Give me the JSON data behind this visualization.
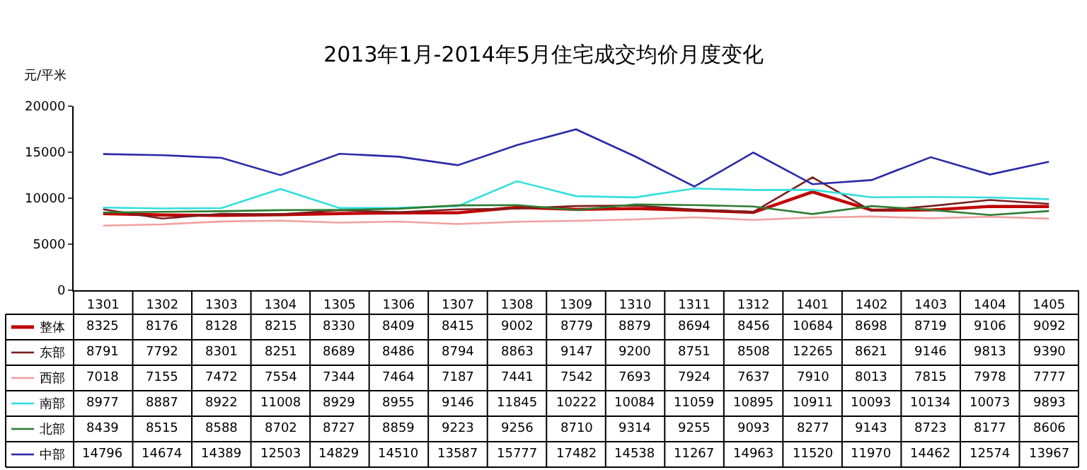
{
  "chart_data": {
    "type": "line",
    "title": "2013年1月-2014年5月住宅成交均价月度变化",
    "ylabel": "元/平米",
    "categories": [
      "1301",
      "1302",
      "1303",
      "1304",
      "1305",
      "1306",
      "1307",
      "1308",
      "1309",
      "1310",
      "1311",
      "1312",
      "1401",
      "1402",
      "1403",
      "1404",
      "1405"
    ],
    "series": [
      {
        "name": "整体",
        "color": "#c00000",
        "values": [
          8325,
          8176,
          8128,
          8215,
          8330,
          8409,
          8415,
          9002,
          8779,
          8879,
          8694,
          8456,
          10684,
          8698,
          8719,
          9106,
          9092
        ]
      },
      {
        "name": "东部",
        "color": "#7a1f1f",
        "values": [
          8791,
          7792,
          8301,
          8251,
          8689,
          8486,
          8794,
          8863,
          9147,
          9200,
          8751,
          8508,
          12265,
          8621,
          9146,
          9813,
          9390
        ]
      },
      {
        "name": "西部",
        "color": "#f0a0a0",
        "values": [
          7018,
          7155,
          7472,
          7554,
          7344,
          7464,
          7187,
          7441,
          7542,
          7693,
          7924,
          7637,
          7910,
          8013,
          7815,
          7978,
          7777
        ]
      },
      {
        "name": "南部",
        "color": "#33dede",
        "values": [
          8977,
          8887,
          8922,
          11008,
          8929,
          8955,
          9146,
          11845,
          10222,
          10084,
          11059,
          10895,
          10911,
          10093,
          10134,
          10073,
          9893
        ]
      },
      {
        "name": "北部",
        "color": "#2e7d32",
        "values": [
          8439,
          8515,
          8588,
          8702,
          8727,
          8859,
          9223,
          9256,
          8710,
          9314,
          9255,
          9093,
          8277,
          9143,
          8723,
          8177,
          8606
        ]
      },
      {
        "name": "中部",
        "color": "#2a2aa8",
        "values": [
          14796,
          14674,
          14389,
          12503,
          14829,
          14510,
          13587,
          15777,
          17482,
          14538,
          11267,
          14963,
          11520,
          11970,
          14462,
          12574,
          13967
        ]
      }
    ],
    "ylim": [
      0,
      20000
    ],
    "yticks": [
      0,
      5000,
      10000,
      15000,
      20000
    ],
    "legend": "bottom left",
    "data_labels": true
  }
}
